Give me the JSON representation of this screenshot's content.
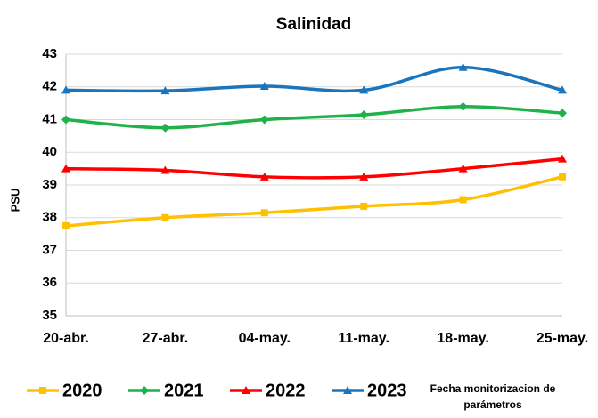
{
  "chart_data": {
    "type": "line",
    "title": "Salinidad",
    "y_label": "PSU",
    "x_label": "Fecha monitorizacion de parámetros",
    "categories": [
      "20-abr.",
      "27-abr.",
      "04-may.",
      "11-may.",
      "18-may.",
      "25-may."
    ],
    "series": [
      {
        "name": "2020",
        "color": "#ffc000",
        "marker": "square",
        "values": [
          37.75,
          38.0,
          38.15,
          38.35,
          38.55,
          39.25
        ]
      },
      {
        "name": "2021",
        "color": "#1fb24a",
        "marker": "diamond",
        "values": [
          41.0,
          40.75,
          41.0,
          41.15,
          41.4,
          41.2
        ]
      },
      {
        "name": "2022",
        "color": "#ff0000",
        "marker": "triangle",
        "values": [
          39.5,
          39.45,
          39.25,
          39.25,
          39.5,
          39.8
        ]
      },
      {
        "name": "2023",
        "color": "#1b75bc",
        "marker": "triangle",
        "values": [
          41.9,
          41.88,
          42.02,
          41.9,
          42.6,
          41.9
        ]
      }
    ],
    "ylim": [
      35,
      43
    ],
    "yticks": [
      35,
      36,
      37,
      38,
      39,
      40,
      41,
      42,
      43
    ],
    "grid": true,
    "legend": "bottom",
    "smooth": true
  }
}
